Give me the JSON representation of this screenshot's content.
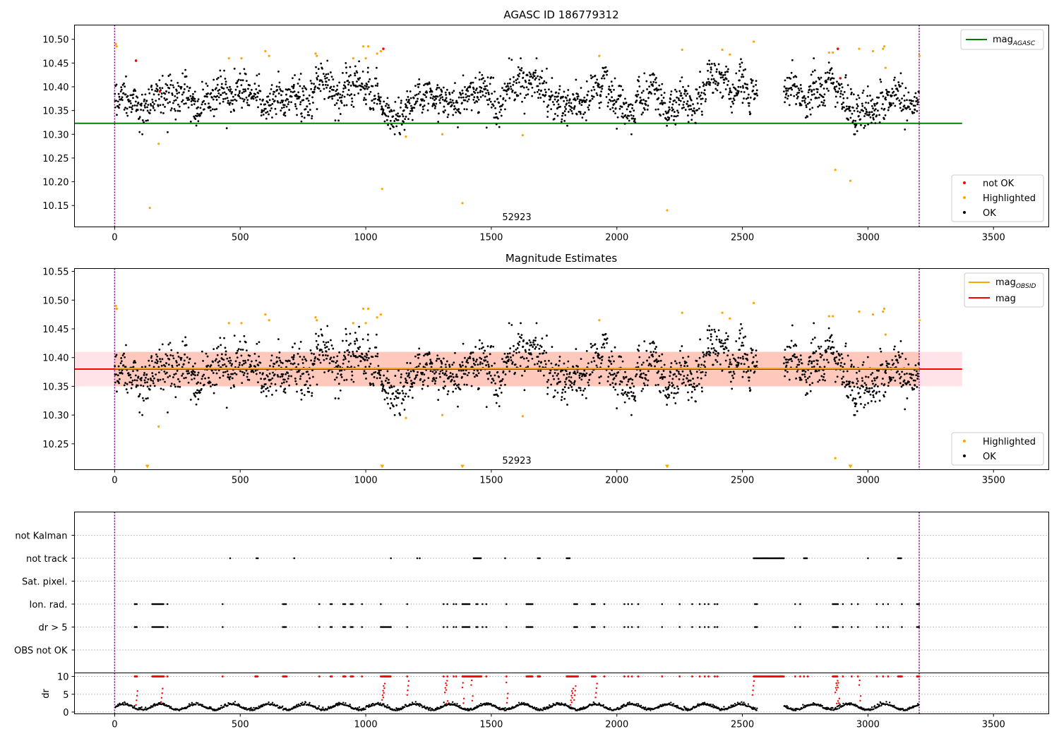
{
  "chart_data": [
    {
      "type": "scatter",
      "title": "AGASC ID 186779312",
      "xlim": [
        -160,
        3720
      ],
      "ylim": [
        10.105,
        10.53
      ],
      "xticks": [
        "0",
        "500",
        "1000",
        "1500",
        "2000",
        "2500",
        "3000",
        "3500"
      ],
      "yticks": [
        "10.15",
        "10.20",
        "10.25",
        "10.30",
        "10.35",
        "10.40",
        "10.45",
        "10.50"
      ],
      "annotation": "52923",
      "vlines_x": [
        0,
        3204
      ],
      "hline": {
        "y": 10.323,
        "x_range": [
          -160,
          3375
        ],
        "color": "#008000"
      },
      "legend_upper": [
        {
          "label": "mag",
          "sub": "AGASC",
          "color": "#008000"
        }
      ],
      "legend_lower": [
        {
          "label": "not OK",
          "color": "#ff0000"
        },
        {
          "label": "Highlighted",
          "color": "#ffa500"
        },
        {
          "label": "OK",
          "color": "#000000"
        }
      ],
      "series": [
        {
          "name": "OK",
          "color": "#000000",
          "count": 2200,
          "x_range": [
            0,
            3204
          ],
          "center": 10.38,
          "spread": 0.035
        },
        {
          "name": "Highlighted",
          "color": "#ffa500",
          "points": [
            [
              5,
              10.49
            ],
            [
              8,
              10.485
            ],
            [
              140,
              10.145
            ],
            [
              175,
              10.28
            ],
            [
              455,
              10.46
            ],
            [
              505,
              10.46
            ],
            [
              600,
              10.475
            ],
            [
              615,
              10.465
            ],
            [
              800,
              10.47
            ],
            [
              805,
              10.465
            ],
            [
              950,
              10.46
            ],
            [
              990,
              10.485
            ],
            [
              1000,
              10.46
            ],
            [
              1010,
              10.485
            ],
            [
              1045,
              10.47
            ],
            [
              1060,
              10.475
            ],
            [
              1065,
              10.185
            ],
            [
              1160,
              10.295
            ],
            [
              1305,
              10.3
            ],
            [
              1385,
              10.155
            ],
            [
              1625,
              10.298
            ],
            [
              1930,
              10.465
            ],
            [
              2200,
              10.14
            ],
            [
              2260,
              10.478
            ],
            [
              2420,
              10.478
            ],
            [
              2450,
              10.468
            ],
            [
              2545,
              10.495
            ],
            [
              2845,
              10.472
            ],
            [
              2860,
              10.472
            ],
            [
              2870,
              10.225
            ],
            [
              2930,
              10.202
            ],
            [
              2965,
              10.48
            ],
            [
              3020,
              10.475
            ],
            [
              3060,
              10.48
            ],
            [
              3065,
              10.485
            ],
            [
              3070,
              10.44
            ],
            [
              3205,
              10.465
            ]
          ]
        },
        {
          "name": "not OK",
          "color": "#ff0000",
          "points": [
            [
              85,
              10.455
            ],
            [
              180,
              10.39
            ],
            [
              1070,
              10.48
            ],
            [
              2880,
              10.48
            ],
            [
              2890,
              10.418
            ]
          ]
        }
      ]
    },
    {
      "type": "scatter",
      "title": "Magnitude Estimates",
      "xlim": [
        -160,
        3720
      ],
      "ylim": [
        10.205,
        10.555
      ],
      "xticks": [
        "0",
        "500",
        "1000",
        "1500",
        "2000",
        "2500",
        "3000",
        "3500"
      ],
      "yticks": [
        "10.25",
        "10.30",
        "10.35",
        "10.40",
        "10.45",
        "10.50",
        "10.55"
      ],
      "annotation": "52923",
      "vlines_x": [
        0,
        3204
      ],
      "band": {
        "y0": 10.35,
        "y1": 10.41,
        "x_range": [
          -160,
          3375
        ]
      },
      "inner_band": {
        "y0": 10.35,
        "y1": 10.41,
        "x_range": [
          0,
          3204
        ]
      },
      "mag_line": {
        "y": 10.38,
        "x_range": [
          -160,
          3375
        ],
        "color": "#ff0000"
      },
      "mag_obsid_line": {
        "y": 10.38,
        "x_range": [
          0,
          3204
        ],
        "color": "#ffa500"
      },
      "legend_upper": [
        {
          "label": "mag",
          "sub": "OBSID",
          "color": "#ffa500"
        },
        {
          "label": "mag",
          "sub": "",
          "color": "#ff0000"
        }
      ],
      "legend_lower": [
        {
          "label": "Highlighted",
          "color": "#ffa500"
        },
        {
          "label": "OK",
          "color": "#000000"
        }
      ],
      "offscale_markers_x": [
        130,
        1065,
        1385,
        2200,
        2930
      ],
      "series": [
        {
          "name": "OK",
          "color": "#000000",
          "count": 2200,
          "x_range": [
            0,
            3204
          ],
          "center": 10.38,
          "spread": 0.035
        },
        {
          "name": "Highlighted",
          "color": "#ffa500",
          "points": [
            [
              5,
              10.49
            ],
            [
              8,
              10.485
            ],
            [
              175,
              10.28
            ],
            [
              455,
              10.46
            ],
            [
              505,
              10.46
            ],
            [
              600,
              10.475
            ],
            [
              615,
              10.465
            ],
            [
              800,
              10.47
            ],
            [
              805,
              10.465
            ],
            [
              950,
              10.46
            ],
            [
              990,
              10.485
            ],
            [
              1000,
              10.46
            ],
            [
              1010,
              10.485
            ],
            [
              1045,
              10.47
            ],
            [
              1060,
              10.475
            ],
            [
              1160,
              10.295
            ],
            [
              1305,
              10.3
            ],
            [
              1625,
              10.298
            ],
            [
              1930,
              10.465
            ],
            [
              2260,
              10.478
            ],
            [
              2420,
              10.478
            ],
            [
              2450,
              10.468
            ],
            [
              2545,
              10.495
            ],
            [
              2845,
              10.472
            ],
            [
              2860,
              10.472
            ],
            [
              2870,
              10.225
            ],
            [
              2965,
              10.48
            ],
            [
              3020,
              10.475
            ],
            [
              3060,
              10.48
            ],
            [
              3065,
              10.485
            ],
            [
              3070,
              10.44
            ],
            [
              3205,
              10.465
            ]
          ]
        }
      ]
    },
    {
      "type": "scatter",
      "title": "",
      "xlim": [
        -160,
        3720
      ],
      "categories": [
        "not Kalman",
        "not track",
        "Sat. pixel.",
        "Ion. rad.",
        "dr > 5",
        "OBS not OK"
      ],
      "vlines_x": [
        0,
        3204
      ],
      "flags": {
        "not track": [
          460,
          565,
          570,
          715,
          1100,
          1205,
          1215,
          [
            1430,
            1460
          ],
          1555,
          [
            1685,
            1695
          ],
          [
            1800,
            1815
          ],
          [
            2545,
            2665
          ],
          [
            2745,
            2760
          ],
          3000,
          [
            3120,
            3135
          ]
        ],
        "Ion. rad.": [
          [
            80,
            90
          ],
          [
            150,
            195
          ],
          210,
          430,
          [
            670,
            685
          ],
          815,
          860,
          865,
          [
            910,
            920
          ],
          [
            940,
            950
          ],
          985,
          1060,
          1165,
          1310,
          1325,
          1350,
          1360,
          [
            1385,
            1415
          ],
          1440,
          1445,
          1465,
          1480,
          1560,
          [
            1640,
            1665
          ],
          [
            1830,
            1845
          ],
          [
            1900,
            1915
          ],
          1950,
          2030,
          2045,
          2060,
          2085,
          2180,
          2250,
          2300,
          2330,
          2350,
          2365,
          2390,
          2400,
          [
            2550,
            2560
          ],
          2710,
          2730,
          [
            2860,
            2880
          ],
          2900,
          2935,
          2960,
          3035,
          3060,
          3080,
          3135,
          [
            3195,
            3204
          ]
        ],
        "dr > 5": [
          [
            80,
            90
          ],
          [
            150,
            195
          ],
          210,
          430,
          [
            670,
            685
          ],
          815,
          860,
          865,
          [
            910,
            920
          ],
          [
            940,
            950
          ],
          985,
          [
            1060,
            1100
          ],
          1165,
          1310,
          1325,
          1350,
          1360,
          [
            1385,
            1415
          ],
          1440,
          1445,
          1465,
          1480,
          1560,
          [
            1640,
            1665
          ],
          [
            1830,
            1845
          ],
          [
            1900,
            1915
          ],
          1950,
          2030,
          2045,
          2060,
          2085,
          2180,
          2250,
          2300,
          2330,
          2350,
          2365,
          2390,
          2400,
          [
            2550,
            2560
          ],
          2710,
          2730,
          [
            2860,
            2880
          ],
          2900,
          2935,
          2960,
          3035,
          3060,
          3080,
          3135,
          [
            3195,
            3204
          ]
        ]
      }
    },
    {
      "type": "scatter",
      "title": "",
      "ylabel": "dr",
      "xlim": [
        -160,
        3720
      ],
      "ylim": [
        -0.5,
        11
      ],
      "xticks": [
        "0",
        "500",
        "1000",
        "1500",
        "2000",
        "2500",
        "3000",
        "3500"
      ],
      "yticks": [
        "0",
        "5",
        "10"
      ],
      "vlines_x": [
        0,
        3204
      ],
      "gaps_x": [
        [
          2560,
          2665
        ]
      ],
      "red_ranges": [
        [
          80,
          90
        ],
        [
          150,
          195
        ],
        210,
        430,
        [
          560,
          570
        ],
        [
          670,
          685
        ],
        815,
        860,
        865,
        [
          910,
          920
        ],
        [
          940,
          950
        ],
        985,
        [
          1060,
          1100
        ],
        1165,
        1310,
        1325,
        1350,
        1360,
        [
          1385,
          1460
        ],
        1480,
        1560,
        [
          1640,
          1665
        ],
        [
          1685,
          1695
        ],
        [
          1800,
          1845
        ],
        [
          1900,
          1915
        ],
        1950,
        2030,
        2045,
        2060,
        2085,
        2180,
        2250,
        2300,
        2330,
        2350,
        2365,
        2390,
        2400,
        [
          2545,
          2665
        ],
        2710,
        2730,
        2745,
        2760,
        [
          2860,
          2880
        ],
        2900,
        2935,
        2960,
        3035,
        3060,
        3080,
        [
          3120,
          3135
        ],
        [
          3195,
          3204
        ]
      ],
      "rise_points_x": [
        85,
        185,
        1065,
        1070,
        1165,
        1315,
        1320,
        1385,
        1420,
        1560,
        1815,
        1820,
        1830,
        1915,
        2540,
        2870,
        2875,
        2880,
        2965
      ]
    }
  ]
}
